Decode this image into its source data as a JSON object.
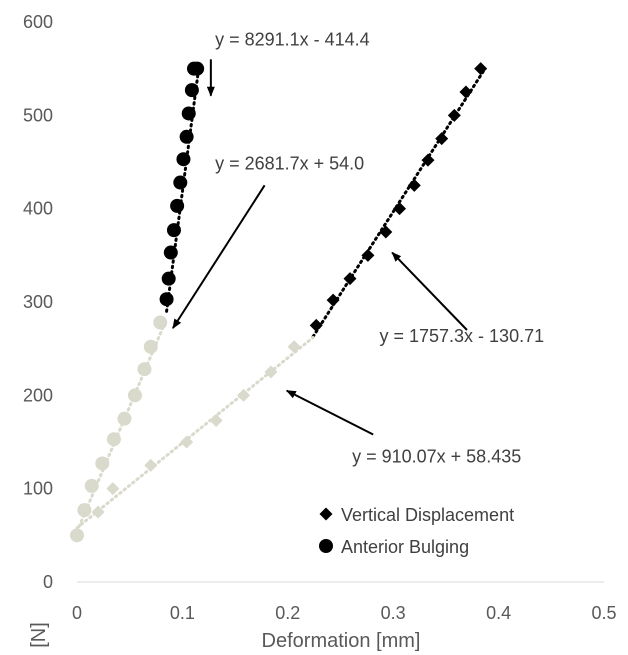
{
  "chart_data": {
    "type": "scatter",
    "xlabel": "Deformation [mm]",
    "ylabel": "[N]",
    "xlim": [
      0,
      0.5
    ],
    "ylim": [
      0,
      600
    ],
    "xticks": [
      "0",
      "0.1",
      "0.2",
      "0.3",
      "0.4",
      "0.5"
    ],
    "yticks": [
      "0",
      "100",
      "200",
      "300",
      "400",
      "500",
      "600"
    ],
    "grid": false,
    "legend_position": "bottom-right",
    "colors": {
      "dark": "#000000",
      "light": "#d9d9cc"
    },
    "legend": [
      {
        "label": "Vertical Displacement",
        "marker": "diamond"
      },
      {
        "label": "Anterior Bulging",
        "marker": "circle"
      }
    ],
    "equations": {
      "bulging_upper": "y = 8291.1x - 414.4",
      "bulging_lower": "y = 2681.7x + 54.0",
      "vertical_upper": "y = 1757.3x - 130.71",
      "vertical_lower": "y = 910.07x + 58.435"
    },
    "series": [
      {
        "marker": "diamond",
        "color": "#000000",
        "x": [
          0.227,
          0.243,
          0.259,
          0.276,
          0.293,
          0.306,
          0.32,
          0.333,
          0.346,
          0.358,
          0.369,
          0.383
        ],
        "y": [
          275,
          302,
          325,
          350,
          375,
          400,
          425,
          452,
          475,
          500,
          525,
          550
        ]
      },
      {
        "marker": "diamond",
        "color": "#d9d9cc",
        "x": [
          0,
          0.02,
          0.034,
          0.07,
          0.104,
          0.132,
          0.158,
          0.184,
          0.206
        ],
        "y": [
          50,
          75,
          100,
          125,
          150,
          173,
          200,
          225,
          252
        ]
      },
      {
        "marker": "circle",
        "color": "#000000",
        "x": [
          0.085,
          0.087,
          0.089,
          0.092,
          0.095,
          0.098,
          0.101,
          0.104,
          0.106,
          0.109,
          0.111,
          0.114
        ],
        "y": [
          303,
          325,
          353,
          377,
          403,
          428,
          453,
          477,
          502,
          527,
          550,
          550
        ]
      },
      {
        "marker": "circle",
        "color": "#d9d9cc",
        "x": [
          0,
          0.007,
          0.014,
          0.024,
          0.035,
          0.045,
          0.055,
          0.064,
          0.07,
          0.079
        ],
        "y": [
          50,
          77,
          103,
          127,
          153,
          175,
          200,
          228,
          252,
          278
        ]
      }
    ],
    "trendlines": [
      {
        "color": "#000000",
        "from": [
          0.085,
          290
        ],
        "to": [
          0.116,
          555
        ]
      },
      {
        "color": "#d9d9cc",
        "from": [
          0,
          54
        ],
        "to": [
          0.085,
          282
        ]
      },
      {
        "color": "#000000",
        "from": [
          0.224,
          263
        ],
        "to": [
          0.386,
          548
        ]
      },
      {
        "color": "#d9d9cc",
        "from": [
          0,
          58
        ],
        "to": [
          0.224,
          262
        ]
      }
    ],
    "annotations": [
      {
        "key": "bulging_upper",
        "text_at": [
          0.131,
          575
        ],
        "arrow_from": [
          0.127,
          560
        ],
        "arrow_to": [
          0.127,
          521
        ]
      },
      {
        "key": "bulging_lower",
        "text_at": [
          0.131,
          442
        ],
        "arrow_from": [
          0.178,
          425
        ],
        "arrow_to": [
          0.091,
          272
        ]
      },
      {
        "key": "vertical_upper",
        "text_at": [
          0.287,
          257
        ],
        "arrow_from": [
          0.37,
          270
        ],
        "arrow_to": [
          0.299,
          353
        ]
      },
      {
        "key": "vertical_lower",
        "text_at": [
          0.261,
          128
        ],
        "arrow_from": [
          0.281,
          158
        ],
        "arrow_to": [
          0.199,
          205
        ]
      }
    ]
  }
}
